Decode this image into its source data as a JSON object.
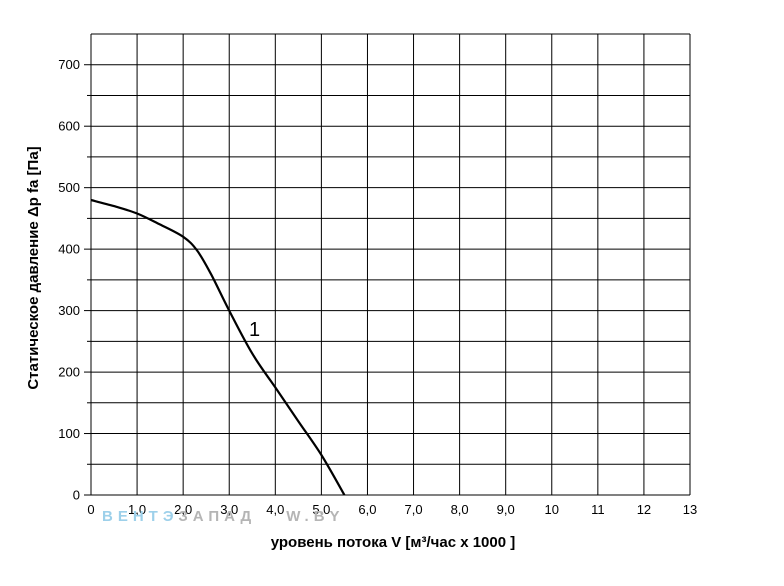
{
  "chart_data": {
    "type": "line",
    "xlabel": "уровень потока  V [м³/час х 1000 ]",
    "ylabel": "Статическое давление  Δp fa [Па]",
    "xlim": [
      0,
      13
    ],
    "ylim": [
      0,
      750
    ],
    "x_ticks": [
      "0",
      "1,0",
      "2,0",
      "3,0",
      "4,0",
      "5,0",
      "6,0",
      "7,0",
      "8,0",
      "9,0",
      "10",
      "11",
      "12",
      "13"
    ],
    "y_ticks": [
      "0",
      "100",
      "200",
      "300",
      "400",
      "500",
      "600",
      "700"
    ],
    "grid": true,
    "series": [
      {
        "name": "1",
        "x": [
          0,
          0.5,
          1.0,
          1.5,
          2.0,
          2.3,
          2.6,
          3.0,
          3.5,
          4.0,
          4.5,
          5.0,
          5.5
        ],
        "y": [
          480,
          470,
          458,
          440,
          420,
          398,
          360,
          300,
          230,
          175,
          120,
          65,
          0
        ]
      }
    ],
    "annotations": [
      {
        "text": "1",
        "x": 3.55,
        "y": 270
      }
    ]
  },
  "watermark": {
    "part1": "ВЕНТЭ",
    "part2": "ЗАПАД",
    "part3": "W.BY",
    "color1": "#9dd0ea",
    "color2": "#b5b5b5"
  }
}
